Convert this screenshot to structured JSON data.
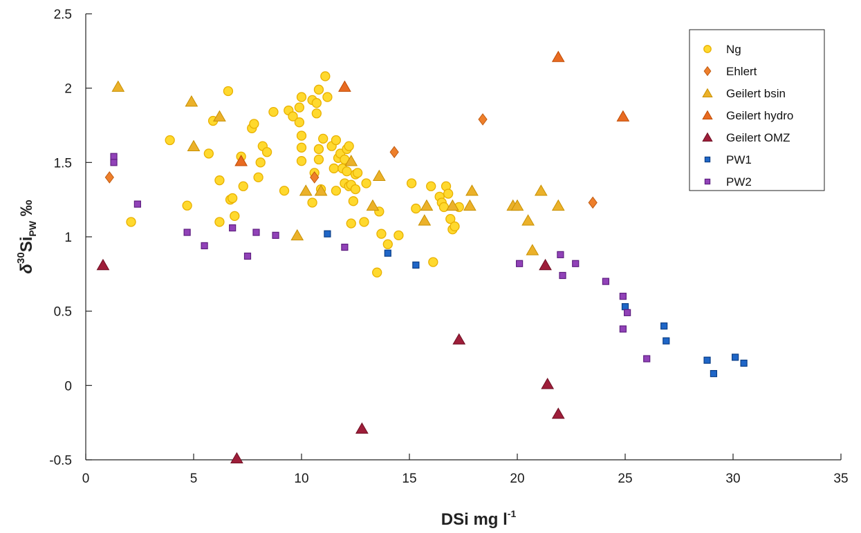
{
  "chart_data": {
    "type": "scatter",
    "title": "",
    "xlabel": "DSi mg l",
    "xlabel_sup": "-1",
    "ylabel_prefix": "δ",
    "ylabel_sup": "30",
    "ylabel_main": "Si",
    "ylabel_sub": "PW",
    "ylabel_suffix": " ‰",
    "xlim": [
      0,
      35
    ],
    "ylim": [
      -0.5,
      2.5
    ],
    "xticks": [
      "0",
      "5",
      "10",
      "15",
      "20",
      "25",
      "30",
      "35"
    ],
    "yticks": [
      "-0.5",
      "0",
      "0.5",
      "1",
      "1.5",
      "2",
      "2.5"
    ],
    "grid": false,
    "legend_position": "top-right",
    "series": [
      {
        "name": "Ng",
        "marker": "circle",
        "color": "#FFD92E",
        "stroke": "#E8B000",
        "points": [
          [
            2.1,
            1.1
          ],
          [
            3.9,
            1.65
          ],
          [
            4.7,
            1.21
          ],
          [
            5.7,
            1.56
          ],
          [
            5.9,
            1.78
          ],
          [
            6.2,
            1.38
          ],
          [
            6.2,
            1.1
          ],
          [
            6.6,
            1.98
          ],
          [
            6.7,
            1.25
          ],
          [
            6.8,
            1.26
          ],
          [
            6.9,
            1.14
          ],
          [
            7.2,
            1.54
          ],
          [
            7.3,
            1.34
          ],
          [
            7.7,
            1.73
          ],
          [
            7.8,
            1.76
          ],
          [
            8.0,
            1.4
          ],
          [
            8.1,
            1.5
          ],
          [
            8.2,
            1.61
          ],
          [
            8.4,
            1.57
          ],
          [
            8.7,
            1.84
          ],
          [
            9.2,
            1.31
          ],
          [
            9.4,
            1.85
          ],
          [
            9.6,
            1.81
          ],
          [
            9.9,
            1.87
          ],
          [
            9.9,
            1.77
          ],
          [
            10.0,
            1.94
          ],
          [
            10.0,
            1.68
          ],
          [
            10.0,
            1.6
          ],
          [
            10.0,
            1.51
          ],
          [
            10.5,
            1.23
          ],
          [
            10.5,
            1.92
          ],
          [
            10.6,
            1.43
          ],
          [
            10.7,
            1.83
          ],
          [
            10.7,
            1.9
          ],
          [
            10.8,
            1.99
          ],
          [
            10.8,
            1.59
          ],
          [
            10.8,
            1.52
          ],
          [
            10.9,
            1.32
          ],
          [
            11.0,
            1.66
          ],
          [
            11.1,
            2.08
          ],
          [
            11.2,
            1.94
          ],
          [
            11.4,
            1.61
          ],
          [
            11.5,
            1.46
          ],
          [
            11.6,
            1.31
          ],
          [
            11.6,
            1.65
          ],
          [
            11.7,
            1.53
          ],
          [
            11.8,
            1.56
          ],
          [
            11.9,
            1.46
          ],
          [
            12.0,
            1.36
          ],
          [
            12.0,
            1.52
          ],
          [
            12.1,
            1.59
          ],
          [
            12.1,
            1.44
          ],
          [
            12.2,
            1.61
          ],
          [
            12.2,
            1.34
          ],
          [
            12.3,
            1.09
          ],
          [
            12.3,
            1.35
          ],
          [
            12.4,
            1.24
          ],
          [
            12.5,
            1.42
          ],
          [
            12.5,
            1.32
          ],
          [
            12.6,
            1.43
          ],
          [
            12.9,
            1.1
          ],
          [
            13.0,
            1.36
          ],
          [
            13.5,
            0.76
          ],
          [
            13.6,
            1.17
          ],
          [
            13.7,
            1.02
          ],
          [
            14.0,
            0.95
          ],
          [
            14.5,
            1.01
          ],
          [
            15.1,
            1.36
          ],
          [
            15.3,
            1.19
          ],
          [
            16.0,
            1.34
          ],
          [
            16.1,
            0.83
          ],
          [
            16.4,
            1.27
          ],
          [
            16.5,
            1.23
          ],
          [
            16.6,
            1.2
          ],
          [
            16.7,
            1.34
          ],
          [
            16.8,
            1.29
          ],
          [
            16.9,
            1.12
          ],
          [
            17.0,
            1.05
          ],
          [
            17.1,
            1.07
          ],
          [
            17.3,
            1.2
          ]
        ]
      },
      {
        "name": "Ehlert",
        "marker": "diamond",
        "color": "#EE7F2B",
        "stroke": "#C05A10",
        "points": [
          [
            1.1,
            1.4
          ],
          [
            10.6,
            1.4
          ],
          [
            14.3,
            1.57
          ],
          [
            18.4,
            1.79
          ],
          [
            23.5,
            1.23
          ]
        ]
      },
      {
        "name": "Geilert bsin",
        "marker": "triangle",
        "color": "#EBB12A",
        "stroke": "#C89000",
        "points": [
          [
            1.5,
            2.01
          ],
          [
            4.9,
            1.91
          ],
          [
            5.0,
            1.61
          ],
          [
            6.2,
            1.81
          ],
          [
            9.8,
            1.01
          ],
          [
            10.2,
            1.31
          ],
          [
            10.9,
            1.31
          ],
          [
            12.3,
            1.51
          ],
          [
            13.3,
            1.21
          ],
          [
            13.6,
            1.41
          ],
          [
            15.7,
            1.11
          ],
          [
            15.8,
            1.21
          ],
          [
            17.0,
            1.21
          ],
          [
            17.8,
            1.21
          ],
          [
            17.9,
            1.31
          ],
          [
            19.8,
            1.21
          ],
          [
            20.0,
            1.21
          ],
          [
            20.5,
            1.11
          ],
          [
            20.7,
            0.91
          ],
          [
            21.1,
            1.31
          ],
          [
            21.9,
            1.21
          ]
        ]
      },
      {
        "name": "Geilert hydro",
        "marker": "triangle",
        "color": "#E86B22",
        "stroke": "#C04A00",
        "points": [
          [
            7.2,
            1.51
          ],
          [
            12.0,
            2.01
          ],
          [
            21.9,
            2.21
          ],
          [
            24.9,
            1.81
          ]
        ]
      },
      {
        "name": "Geilert OMZ",
        "marker": "triangle",
        "color": "#9E1E3A",
        "stroke": "#6E0E22",
        "points": [
          [
            0.8,
            0.81
          ],
          [
            7.0,
            -0.49
          ],
          [
            12.8,
            -0.29
          ],
          [
            17.3,
            0.31
          ],
          [
            21.3,
            0.81
          ],
          [
            21.4,
            0.01
          ],
          [
            21.9,
            -0.19
          ]
        ]
      },
      {
        "name": "PW1",
        "marker": "square",
        "color": "#1F66C7",
        "stroke": "#0B3E86",
        "points": [
          [
            11.2,
            1.02
          ],
          [
            14.0,
            0.89
          ],
          [
            15.3,
            0.81
          ],
          [
            25.0,
            0.53
          ],
          [
            26.8,
            0.4
          ],
          [
            26.9,
            0.3
          ],
          [
            28.8,
            0.17
          ],
          [
            29.1,
            0.08
          ],
          [
            30.1,
            0.19
          ],
          [
            30.5,
            0.15
          ]
        ]
      },
      {
        "name": "PW2",
        "marker": "square",
        "color": "#9142B8",
        "stroke": "#5E1E80",
        "points": [
          [
            1.3,
            1.54
          ],
          [
            1.3,
            1.5
          ],
          [
            2.4,
            1.22
          ],
          [
            4.7,
            1.03
          ],
          [
            5.5,
            0.94
          ],
          [
            6.8,
            1.06
          ],
          [
            7.5,
            0.87
          ],
          [
            7.9,
            1.03
          ],
          [
            8.8,
            1.01
          ],
          [
            12.0,
            0.93
          ],
          [
            20.1,
            0.82
          ],
          [
            22.0,
            0.88
          ],
          [
            22.1,
            0.74
          ],
          [
            22.7,
            0.82
          ],
          [
            24.1,
            0.7
          ],
          [
            24.9,
            0.6
          ],
          [
            24.9,
            0.38
          ],
          [
            25.1,
            0.49
          ],
          [
            26.0,
            0.18
          ]
        ]
      }
    ]
  }
}
